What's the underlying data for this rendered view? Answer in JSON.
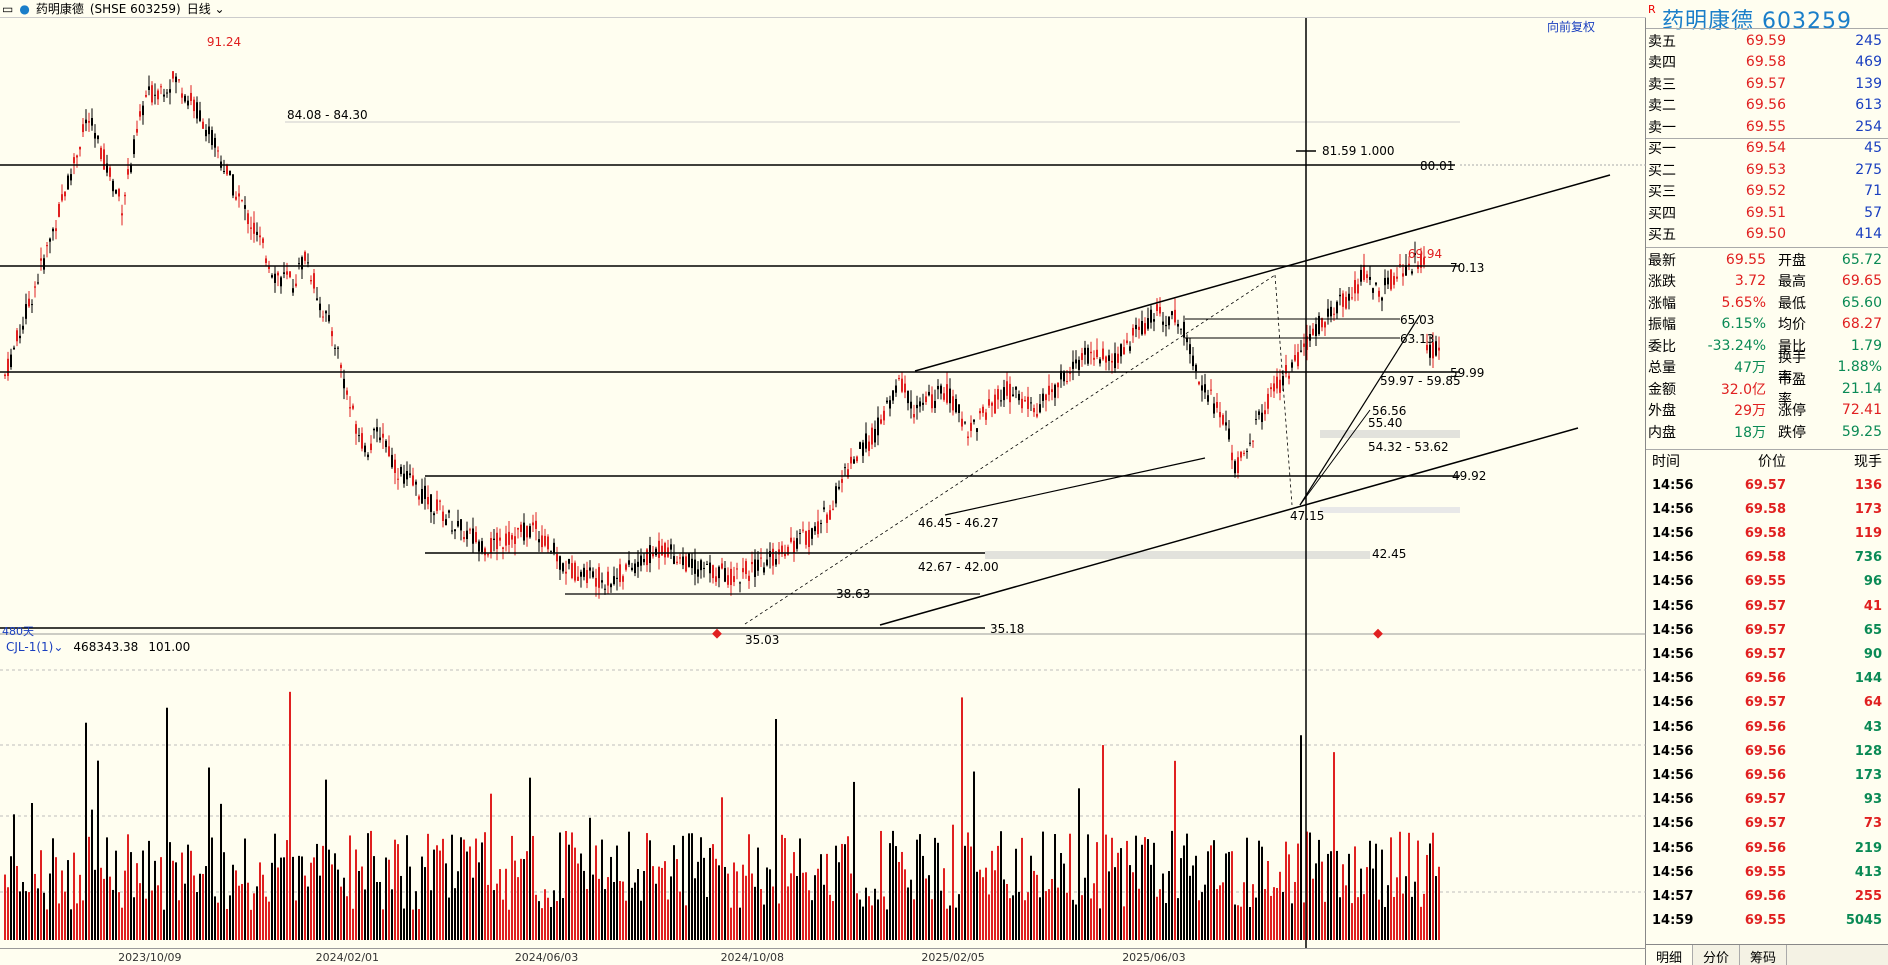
{
  "header": {
    "stock_name": "药明康德",
    "exchange_code": "SHSE 603259",
    "period": "日线",
    "fuquan_label": "向前复权",
    "days_label": "480天"
  },
  "volume_indicator": {
    "name": "CJL-1(1)",
    "value1": "468343.38",
    "value2": "101.00"
  },
  "xaxis_labels": [
    {
      "label": "2023/10/09",
      "pos": 0.09
    },
    {
      "label": "2024/02/01",
      "pos": 0.21
    },
    {
      "label": "2024/06/03",
      "pos": 0.331
    },
    {
      "label": "2024/10/08",
      "pos": 0.456
    },
    {
      "label": "2025/02/05",
      "pos": 0.578
    },
    {
      "label": "2025/06/03",
      "pos": 0.7
    }
  ],
  "price_annotations": [
    "91.24",
    "84.08 - 84.30",
    "80.01",
    "81.59 1.000",
    "70.13",
    "69.94",
    "65.03",
    "63.13",
    "59.99",
    "59.97 - 59.85",
    "56.56",
    "55.40",
    "54.32 - 53.62",
    "49.92",
    "47.15",
    "46.45 - 46.27",
    "42.67 - 42.00",
    "42.45",
    "38.63",
    "35.18",
    "35.03"
  ],
  "panel": {
    "title": "药明康德  603259",
    "r_badge": "R",
    "asks": [
      {
        "label": "卖五",
        "price": "69.59",
        "vol": "245"
      },
      {
        "label": "卖四",
        "price": "69.58",
        "vol": "469"
      },
      {
        "label": "卖三",
        "price": "69.57",
        "vol": "139"
      },
      {
        "label": "卖二",
        "price": "69.56",
        "vol": "613"
      },
      {
        "label": "卖一",
        "price": "69.55",
        "vol": "254"
      }
    ],
    "bids": [
      {
        "label": "买一",
        "price": "69.54",
        "vol": "45"
      },
      {
        "label": "买二",
        "price": "69.53",
        "vol": "275"
      },
      {
        "label": "买三",
        "price": "69.52",
        "vol": "71"
      },
      {
        "label": "买四",
        "price": "69.51",
        "vol": "57"
      },
      {
        "label": "买五",
        "price": "69.50",
        "vol": "414"
      }
    ],
    "stats": [
      {
        "l1": "最新",
        "v1": "69.55",
        "c1": "red",
        "l2": "开盘",
        "v2": "65.72",
        "c2": "green"
      },
      {
        "l1": "涨跌",
        "v1": "3.72",
        "c1": "red",
        "l2": "最高",
        "v2": "69.65",
        "c2": "red"
      },
      {
        "l1": "涨幅",
        "v1": "5.65%",
        "c1": "red",
        "l2": "最低",
        "v2": "65.60",
        "c2": "green"
      },
      {
        "l1": "振幅",
        "v1": "6.15%",
        "c1": "teal",
        "l2": "均价",
        "v2": "68.27",
        "c2": "red"
      },
      {
        "l1": "委比",
        "v1": "-33.24%",
        "c1": "teal",
        "l2": "量比",
        "v2": "1.79",
        "c2": "teal"
      },
      {
        "l1": "总量",
        "v1": "47万",
        "c1": "teal",
        "l2": "换手率",
        "v2": "1.88%",
        "c2": "teal"
      },
      {
        "l1": "金额",
        "v1": "32.0亿",
        "c1": "red",
        "l2": "市盈率",
        "v2": "21.14",
        "c2": "teal"
      },
      {
        "l1": "外盘",
        "v1": "29万",
        "c1": "red",
        "l2": "涨停",
        "v2": "72.41",
        "c2": "red"
      },
      {
        "l1": "内盘",
        "v1": "18万",
        "c1": "teal",
        "l2": "跌停",
        "v2": "59.25",
        "c2": "teal"
      }
    ],
    "ticks_header": {
      "time": "时间",
      "price": "价位",
      "vol": "现手"
    },
    "ticks": [
      {
        "t": "14:56",
        "p": "69.57",
        "v": "136",
        "c": "red"
      },
      {
        "t": "14:56",
        "p": "69.58",
        "v": "173",
        "c": "red"
      },
      {
        "t": "14:56",
        "p": "69.58",
        "v": "119",
        "c": "red"
      },
      {
        "t": "14:56",
        "p": "69.58",
        "v": "736",
        "c": "green"
      },
      {
        "t": "14:56",
        "p": "69.55",
        "v": "96",
        "c": "green"
      },
      {
        "t": "14:56",
        "p": "69.57",
        "v": "41",
        "c": "red"
      },
      {
        "t": "14:56",
        "p": "69.57",
        "v": "65",
        "c": "green"
      },
      {
        "t": "14:56",
        "p": "69.57",
        "v": "90",
        "c": "green"
      },
      {
        "t": "14:56",
        "p": "69.56",
        "v": "144",
        "c": "green"
      },
      {
        "t": "14:56",
        "p": "69.57",
        "v": "64",
        "c": "red"
      },
      {
        "t": "14:56",
        "p": "69.56",
        "v": "43",
        "c": "green"
      },
      {
        "t": "14:56",
        "p": "69.56",
        "v": "128",
        "c": "green"
      },
      {
        "t": "14:56",
        "p": "69.56",
        "v": "173",
        "c": "green"
      },
      {
        "t": "14:56",
        "p": "69.57",
        "v": "93",
        "c": "green"
      },
      {
        "t": "14:56",
        "p": "69.57",
        "v": "73",
        "c": "red"
      },
      {
        "t": "14:56",
        "p": "69.56",
        "v": "219",
        "c": "green"
      },
      {
        "t": "14:56",
        "p": "69.55",
        "v": "413",
        "c": "green"
      },
      {
        "t": "14:57",
        "p": "69.56",
        "v": "255",
        "c": "red"
      },
      {
        "t": "14:59",
        "p": "69.55",
        "v": "5045",
        "c": "green"
      }
    ]
  },
  "tabs": [
    "明细",
    "分价",
    "筹码"
  ],
  "colors": {
    "up": "#e02020",
    "down": "#000000",
    "accent": "#1a7ec9"
  }
}
